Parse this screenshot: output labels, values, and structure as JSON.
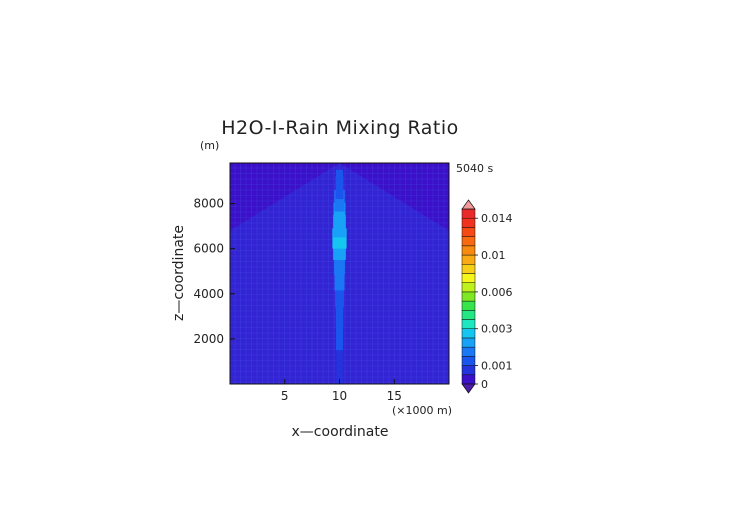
{
  "chart_data": {
    "type": "heatmap",
    "title": "H2O-I-Rain Mixing Ratio",
    "time_label": "5040 s",
    "xlabel": "x—coordinate",
    "ylabel": "z—coordinate",
    "x_unit": "(×1000 m)",
    "y_unit": "(m)",
    "xlim": [
      0,
      20
    ],
    "ylim": [
      0,
      9800
    ],
    "x_ticks": [
      {
        "value": 5,
        "label": "5"
      },
      {
        "value": 10,
        "label": "10"
      },
      {
        "value": 15,
        "label": "15"
      }
    ],
    "y_ticks": [
      {
        "value": 2000,
        "label": "2000"
      },
      {
        "value": 4000,
        "label": "4000"
      },
      {
        "value": 6000,
        "label": "6000"
      },
      {
        "value": 8000,
        "label": "8000"
      }
    ],
    "background_value": 0.0004,
    "plume": {
      "x_center": 10.0,
      "profile": [
        {
          "z": 200,
          "value": 0.0008
        },
        {
          "z": 1000,
          "value": 0.0009
        },
        {
          "z": 2000,
          "value": 0.001
        },
        {
          "z": 3000,
          "value": 0.0011
        },
        {
          "z": 3800,
          "value": 0.0014
        },
        {
          "z": 4500,
          "value": 0.0016
        },
        {
          "z": 5200,
          "value": 0.0018
        },
        {
          "z": 5800,
          "value": 0.0022
        },
        {
          "z": 6200,
          "value": 0.0025
        },
        {
          "z": 6800,
          "value": 0.0022
        },
        {
          "z": 7400,
          "value": 0.002
        },
        {
          "z": 7900,
          "value": 0.0017
        },
        {
          "z": 8500,
          "value": 0.0012
        },
        {
          "z": 9100,
          "value": 0.001
        }
      ]
    },
    "colorbar": {
      "levels": [
        0,
        0.0005,
        0.001,
        0.0015,
        0.002,
        0.0025,
        0.003,
        0.0035,
        0.004,
        0.005,
        0.006,
        0.007,
        0.008,
        0.009,
        0.01,
        0.011,
        0.012,
        0.013,
        0.014,
        0.015
      ],
      "colors": [
        "#3b10c8",
        "#2333dd",
        "#1a55ee",
        "#1a78f4",
        "#18a2f7",
        "#14c6f0",
        "#1de6c0",
        "#23e685",
        "#37e44c",
        "#7fe825",
        "#bff21c",
        "#f6f61c",
        "#f8cf18",
        "#f8ab14",
        "#f88a12",
        "#f86a12",
        "#f54a14",
        "#f0321e",
        "#ea2a2a"
      ],
      "under_color": "#4b1aa6",
      "over_color": "#f19a9a",
      "tick_labels": [
        {
          "value": 0,
          "label": "0"
        },
        {
          "value": 0.001,
          "label": "0.001"
        },
        {
          "value": 0.003,
          "label": "0.003"
        },
        {
          "value": 0.006,
          "label": "0.006"
        },
        {
          "value": 0.01,
          "label": "0.01"
        },
        {
          "value": 0.014,
          "label": "0.014"
        }
      ]
    }
  }
}
